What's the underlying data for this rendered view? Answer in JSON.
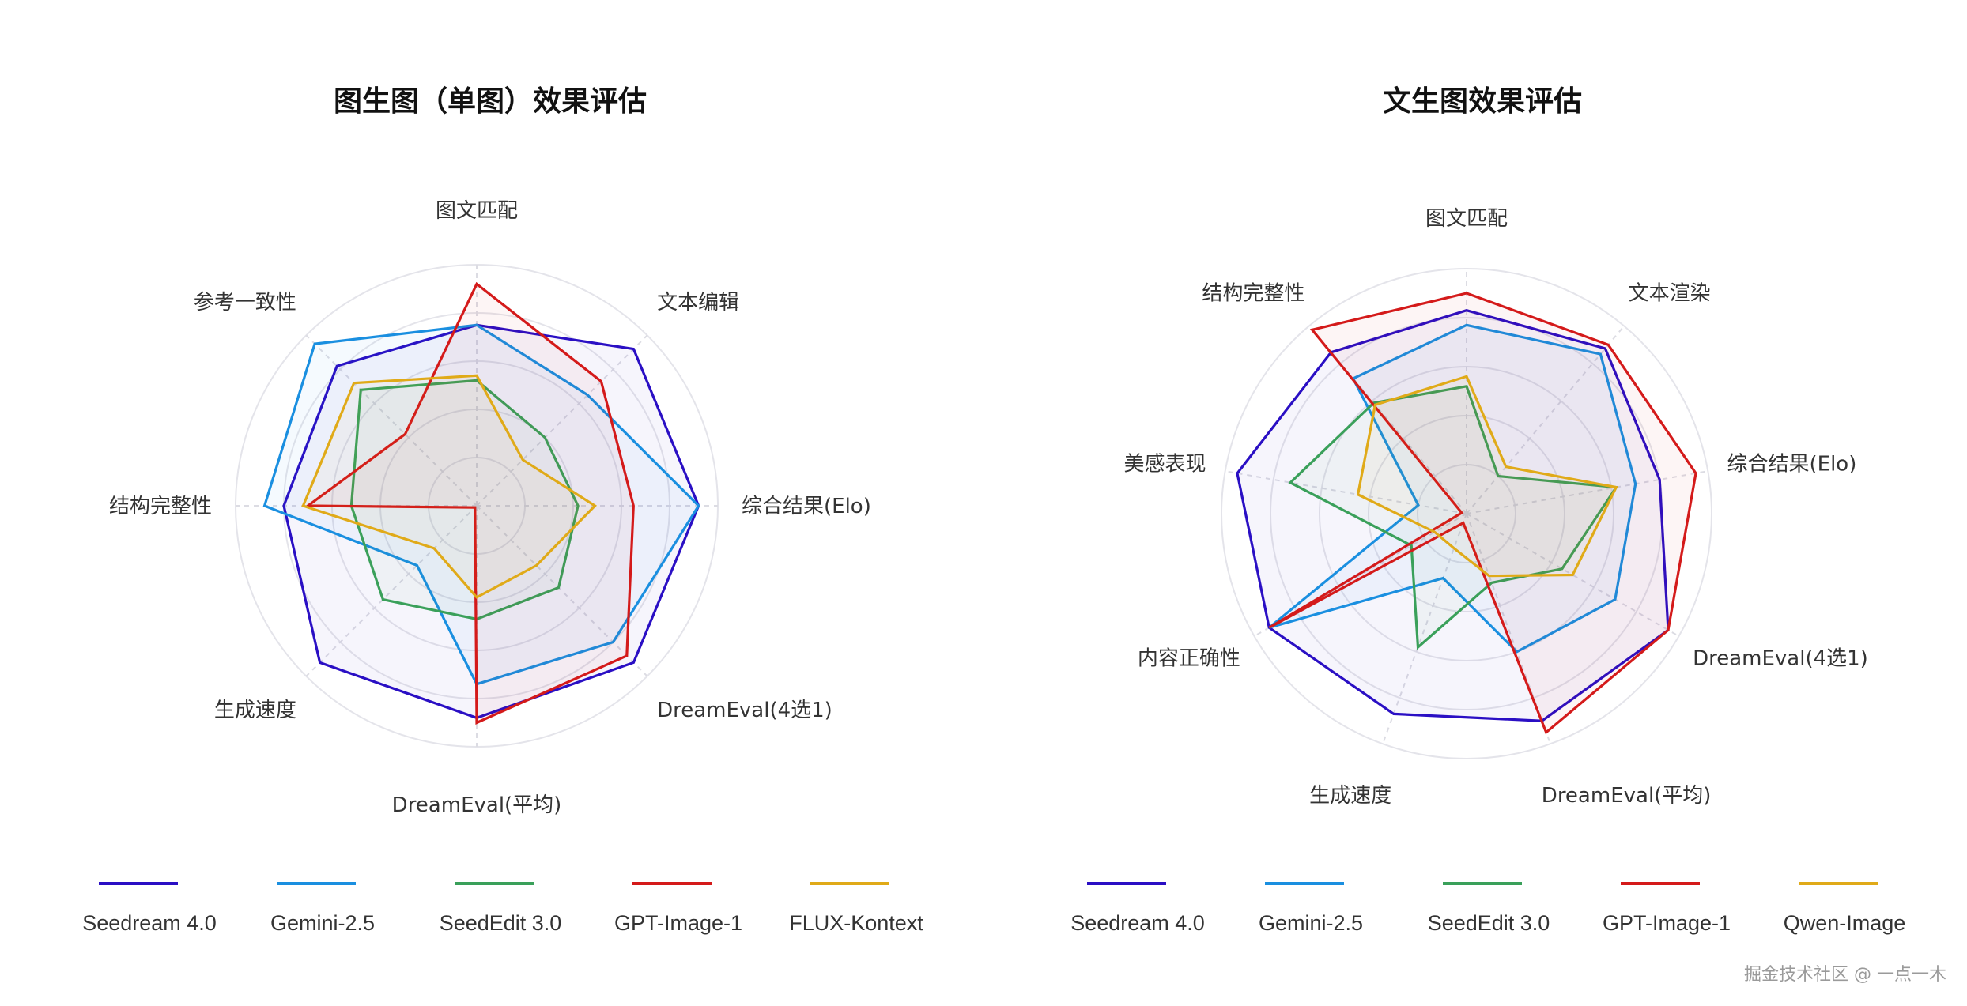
{
  "colors": {
    "Seedream 4.0": "#2a0fc4",
    "Gemini-2.5": "#1a8fe0",
    "SeedEdit 3.0": "#3aa05a",
    "GPT-Image-1": "#d41a1a",
    "FLUX-Kontext": "#e0aa18",
    "Qwen-Image": "#e0aa18"
  },
  "chart_data": [
    {
      "type": "radar",
      "title": "图生图（单图）效果评估",
      "axes": [
        "图文匹配",
        "文本编辑",
        "综合结果(Elo)",
        "DreamEval(4选1)",
        "DreamEval(平均)",
        "生成速度",
        "结构完整性",
        "参考一致性"
      ],
      "range": [
        0,
        1
      ],
      "grid": true,
      "legend_position": "bottom",
      "series": [
        {
          "name": "Seedream 4.0",
          "values": [
            0.75,
            0.92,
            0.92,
            0.92,
            0.88,
            0.92,
            0.8,
            0.82
          ]
        },
        {
          "name": "Gemini-2.5",
          "values": [
            0.75,
            0.65,
            0.92,
            0.8,
            0.74,
            0.35,
            0.88,
            0.95
          ]
        },
        {
          "name": "SeedEdit 3.0",
          "values": [
            0.52,
            0.4,
            0.42,
            0.48,
            0.47,
            0.55,
            0.52,
            0.68
          ]
        },
        {
          "name": "GPT-Image-1",
          "values": [
            0.92,
            0.73,
            0.65,
            0.88,
            0.9,
            0.01,
            0.7,
            0.42
          ]
        },
        {
          "name": "FLUX-Kontext",
          "values": [
            0.54,
            0.27,
            0.49,
            0.35,
            0.38,
            0.25,
            0.72,
            0.72
          ]
        }
      ]
    },
    {
      "type": "radar",
      "title": "文生图效果评估",
      "axes": [
        "图文匹配",
        "文本渲染",
        "综合结果(Elo)",
        "DreamEval(4选1)",
        "DreamEval(平均)",
        "生成速度",
        "内容正确性",
        "美感表现",
        "结构完整性"
      ],
      "range": [
        0,
        1
      ],
      "grid": true,
      "legend_position": "bottom",
      "series": [
        {
          "name": "Seedream 4.0",
          "values": [
            0.83,
            0.88,
            0.8,
            0.95,
            0.9,
            0.87,
            0.93,
            0.95,
            0.86
          ]
        },
        {
          "name": "Gemini-2.5",
          "values": [
            0.77,
            0.85,
            0.7,
            0.7,
            0.6,
            0.28,
            0.93,
            0.2,
            0.72
          ]
        },
        {
          "name": "SeedEdit 3.0",
          "values": [
            0.52,
            0.2,
            0.62,
            0.45,
            0.3,
            0.58,
            0.26,
            0.73,
            0.59
          ]
        },
        {
          "name": "GPT-Image-1",
          "values": [
            0.9,
            0.9,
            0.95,
            0.95,
            0.95,
            0.04,
            0.93,
            0.02,
            0.98
          ]
        },
        {
          "name": "Qwen-Image",
          "values": [
            0.56,
            0.25,
            0.62,
            0.5,
            0.27,
            0.15,
            0.15,
            0.45,
            0.58
          ]
        }
      ]
    }
  ],
  "legends": [
    [
      "Seedream 4.0",
      "Gemini-2.5",
      "SeedEdit 3.0",
      "GPT-Image-1",
      "FLUX-Kontext"
    ],
    [
      "Seedream 4.0",
      "Gemini-2.5",
      "SeedEdit 3.0",
      "GPT-Image-1",
      "Qwen-Image"
    ]
  ],
  "watermark": "掘金技术社区 @ 一点一木"
}
